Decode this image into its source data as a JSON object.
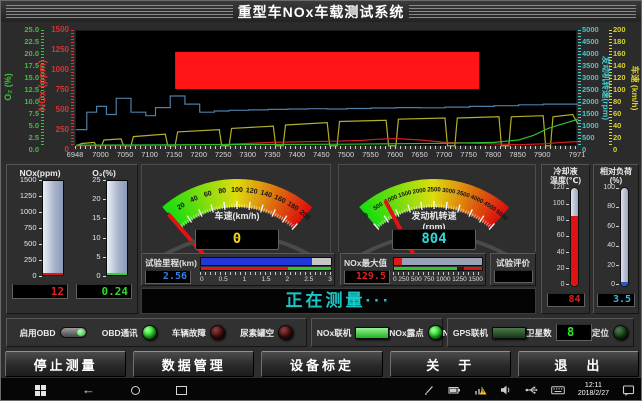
{
  "title": "重型车NOx车载测试系统",
  "message": {
    "text": "正在测量···",
    "color": "#18c8c8"
  },
  "chart": {
    "x_range": [
      6948,
      7971
    ],
    "x_ticks": [
      6948,
      7000,
      7050,
      7100,
      7150,
      7200,
      7250,
      7300,
      7350,
      7400,
      7450,
      7500,
      7550,
      7600,
      7650,
      7700,
      7750,
      7800,
      7850,
      7900,
      7971
    ],
    "axes": {
      "o2": {
        "label": "O₂ (%)",
        "color": "#3fbf3f",
        "range": [
          0,
          25
        ],
        "ticks": [
          "25.0",
          "22.5",
          "20.0",
          "17.5",
          "15.0",
          "12.5",
          "10.0",
          "7.5",
          "5.0",
          "2.5",
          "0.0"
        ]
      },
      "nox": {
        "label": "NOx (ppm)",
        "color": "#e03030",
        "range": [
          0,
          1500
        ],
        "ticks": [
          "1500",
          "1250",
          "1000",
          "750",
          "500",
          "250",
          "0"
        ]
      },
      "rpm": {
        "label": "发动机转速(rpm)",
        "color": "#45c8c8",
        "range": [
          0,
          5000
        ],
        "ticks": [
          "5000",
          "4500",
          "4000",
          "3500",
          "3000",
          "2500",
          "2000",
          "1500",
          "1000",
          "500",
          "0"
        ]
      },
      "speed": {
        "label": "车速 (km/h)",
        "color": "#d8d232",
        "range": [
          0,
          200
        ],
        "ticks": [
          "200",
          "180",
          "160",
          "140",
          "120",
          "100",
          "80",
          "60",
          "40",
          "20",
          "0"
        ]
      }
    },
    "alarm_region": {
      "x": [
        7150,
        7770
      ],
      "y_ppm": [
        750,
        1230
      ],
      "color": "#ff1515"
    },
    "series": [
      {
        "name": "engine-speed",
        "axis": "rpm",
        "color": "#4d7ea8",
        "step": true,
        "x": [
          6948,
          6970,
          6990,
          7010,
          7030,
          7060,
          7090,
          7110,
          7140,
          7170,
          7200,
          7230,
          7260,
          7300,
          7340,
          7380,
          7420,
          7460,
          7500,
          7550,
          7600,
          7650,
          7700,
          7750,
          7800,
          7850,
          7900,
          7971
        ],
        "values": [
          750,
          1500,
          1750,
          1400,
          2100,
          1500,
          1350,
          1700,
          2200,
          1850,
          1500,
          1550,
          1580,
          1600,
          1620,
          1640,
          1650,
          1640,
          1660,
          1680,
          1700,
          1690,
          1720,
          1750,
          1780,
          1820,
          1850,
          1800
        ]
      },
      {
        "name": "vehicle-speed",
        "axis": "speed",
        "color": "#b5ad2b",
        "step": false,
        "x": [
          6948,
          6960,
          6985,
          6990,
          7000,
          7005,
          7040,
          7045,
          7060,
          7065,
          7130,
          7135,
          7150,
          7155,
          7240,
          7245,
          7260,
          7265,
          7350,
          7355,
          7370,
          7375,
          7460,
          7465,
          7480,
          7485,
          7580,
          7585,
          7600,
          7605,
          7700,
          7705,
          7720,
          7725,
          7810,
          7815,
          7830,
          7835,
          7900,
          7905,
          7915,
          7920,
          7960,
          7971
        ],
        "values": [
          2,
          6,
          8,
          2,
          2,
          12,
          14,
          2,
          2,
          18,
          22,
          2,
          2,
          26,
          30,
          2,
          2,
          32,
          36,
          2,
          2,
          38,
          42,
          2,
          2,
          44,
          46,
          2,
          2,
          48,
          50,
          2,
          2,
          50,
          52,
          2,
          2,
          52,
          54,
          2,
          2,
          52,
          56,
          40
        ]
      },
      {
        "name": "nox",
        "axis": "nox",
        "color": "#cf2020",
        "step": false,
        "x": [
          6948,
          7050,
          7150,
          7250,
          7350,
          7420,
          7480,
          7530,
          7560,
          7600,
          7650,
          7700,
          7750,
          7800,
          7850,
          7900,
          7940,
          7971
        ],
        "values": [
          15,
          20,
          25,
          35,
          60,
          70,
          75,
          85,
          100,
          110,
          90,
          60,
          50,
          40,
          30,
          40,
          60,
          70
        ]
      },
      {
        "name": "o2",
        "axis": "o2",
        "color": "#2fbf2f",
        "step": false,
        "x": [
          6948,
          7200,
          7500,
          7700,
          7800,
          7850,
          7880,
          7910,
          7940,
          7971
        ],
        "values": [
          0.4,
          0.5,
          0.6,
          0.8,
          1.0,
          1.5,
          2.5,
          4.0,
          5.0,
          6.0
        ]
      }
    ]
  },
  "gauges": {
    "speed": {
      "title_lines": [
        "车速(km/h)"
      ],
      "min": 0,
      "max": 200,
      "tick_step": 20,
      "tick_font": 7,
      "value": 0,
      "display": "0",
      "display_color": "#f2d21c"
    },
    "rpm": {
      "title_lines": [
        "发动机转速",
        "(rpm)"
      ],
      "min": 0,
      "max": 5000,
      "tick_step": 500,
      "tick_font": 6,
      "value": 804,
      "display": "804",
      "display_color": "#2fd8d8"
    }
  },
  "tanks": [
    {
      "title": "NOx(ppm)",
      "max": 1500,
      "ticks": [
        "1500",
        "1250",
        "1000",
        "750",
        "500",
        "250",
        "0"
      ],
      "value": 12,
      "display": "12",
      "fill_color": "#e01818",
      "display_color": "#e02020"
    },
    {
      "title": "O₂(%)",
      "max": 25,
      "ticks": [
        "25",
        "20",
        "15",
        "10",
        "5",
        "0"
      ],
      "value": 0.24,
      "display": "0.24",
      "fill_color": "#2fd82f",
      "display_color": "#2fd82f"
    }
  ],
  "thermometers": [
    {
      "title_lines": [
        "冷却液",
        "温度(℃)"
      ],
      "max": 120,
      "ticks": [
        "120",
        "100",
        "80",
        "60",
        "40",
        "20",
        "0"
      ],
      "value": 84,
      "display": "84",
      "fill_color": "#e01212",
      "display_color": "#e02020"
    },
    {
      "title_lines": [
        "相对负荷",
        "(%)"
      ],
      "max": 100,
      "ticks": [
        "100",
        "80",
        "60",
        "40",
        "20",
        "0"
      ],
      "value": 3.5,
      "display": "3.5",
      "fill_color": "#2a52cc",
      "display_color": "#35b8e8"
    }
  ],
  "progress": {
    "mileage": {
      "label": "试验里程(km)",
      "display": "2.56",
      "value": 2.56,
      "max": 3,
      "ticks": [
        "0",
        "0.5",
        "1",
        "1.5",
        "2",
        "2.5",
        "3"
      ],
      "fill_color": "#2038d8",
      "rest_color": "#c6c6c6",
      "display_color": "#2f7fe8",
      "under_segments": [
        [
          "#d81818",
          67
        ],
        [
          "#2fc82f",
          33
        ]
      ]
    },
    "nox_max": {
      "label": "NOx最大值",
      "display": "129.5",
      "value": 129.5,
      "max": 1500,
      "ticks": [
        "0",
        "250",
        "500",
        "750",
        "1000",
        "1250",
        "1500"
      ],
      "fill_color": "#e01818",
      "rest_color": "#9aa2b8",
      "display_color": "#e02020",
      "under_segments": [
        [
          "#2fc82f",
          72
        ],
        [
          "#4a0c0c",
          7
        ],
        [
          "#d81818",
          21
        ]
      ]
    },
    "evaluation": {
      "label": "试验评价",
      "display": ""
    }
  },
  "status_row": {
    "groups": [
      {
        "name": "obd",
        "items": [
          {
            "label": "启用OBD",
            "type": "toggle",
            "state": "on"
          },
          {
            "label": "OBD通讯",
            "type": "led",
            "state": "on-green"
          },
          {
            "label": "车辆故障",
            "type": "led",
            "state": "off-red"
          },
          {
            "label": "尿素罐空",
            "type": "led",
            "state": "off-red"
          }
        ]
      },
      {
        "name": "nox",
        "items": [
          {
            "label": "NOx联机",
            "type": "ledrect",
            "state": "on-green"
          },
          {
            "label": "NOx露点",
            "type": "led",
            "state": "on-green"
          },
          {
            "label": "NOx故障",
            "type": "led",
            "state": "off-red"
          }
        ]
      },
      {
        "name": "gps",
        "items": [
          {
            "label": "GPS联机",
            "type": "ledrect",
            "state": "off-green"
          },
          {
            "label": "卫星数",
            "type": "digital",
            "display": "8"
          },
          {
            "label": "定位",
            "type": "led",
            "state": "off-green"
          }
        ]
      }
    ]
  },
  "buttons": [
    "停止测量",
    "数据管理",
    "设备标定",
    "关　于",
    "退　出"
  ],
  "taskbar": {
    "time": "12:11",
    "date": "2018/2/27"
  }
}
